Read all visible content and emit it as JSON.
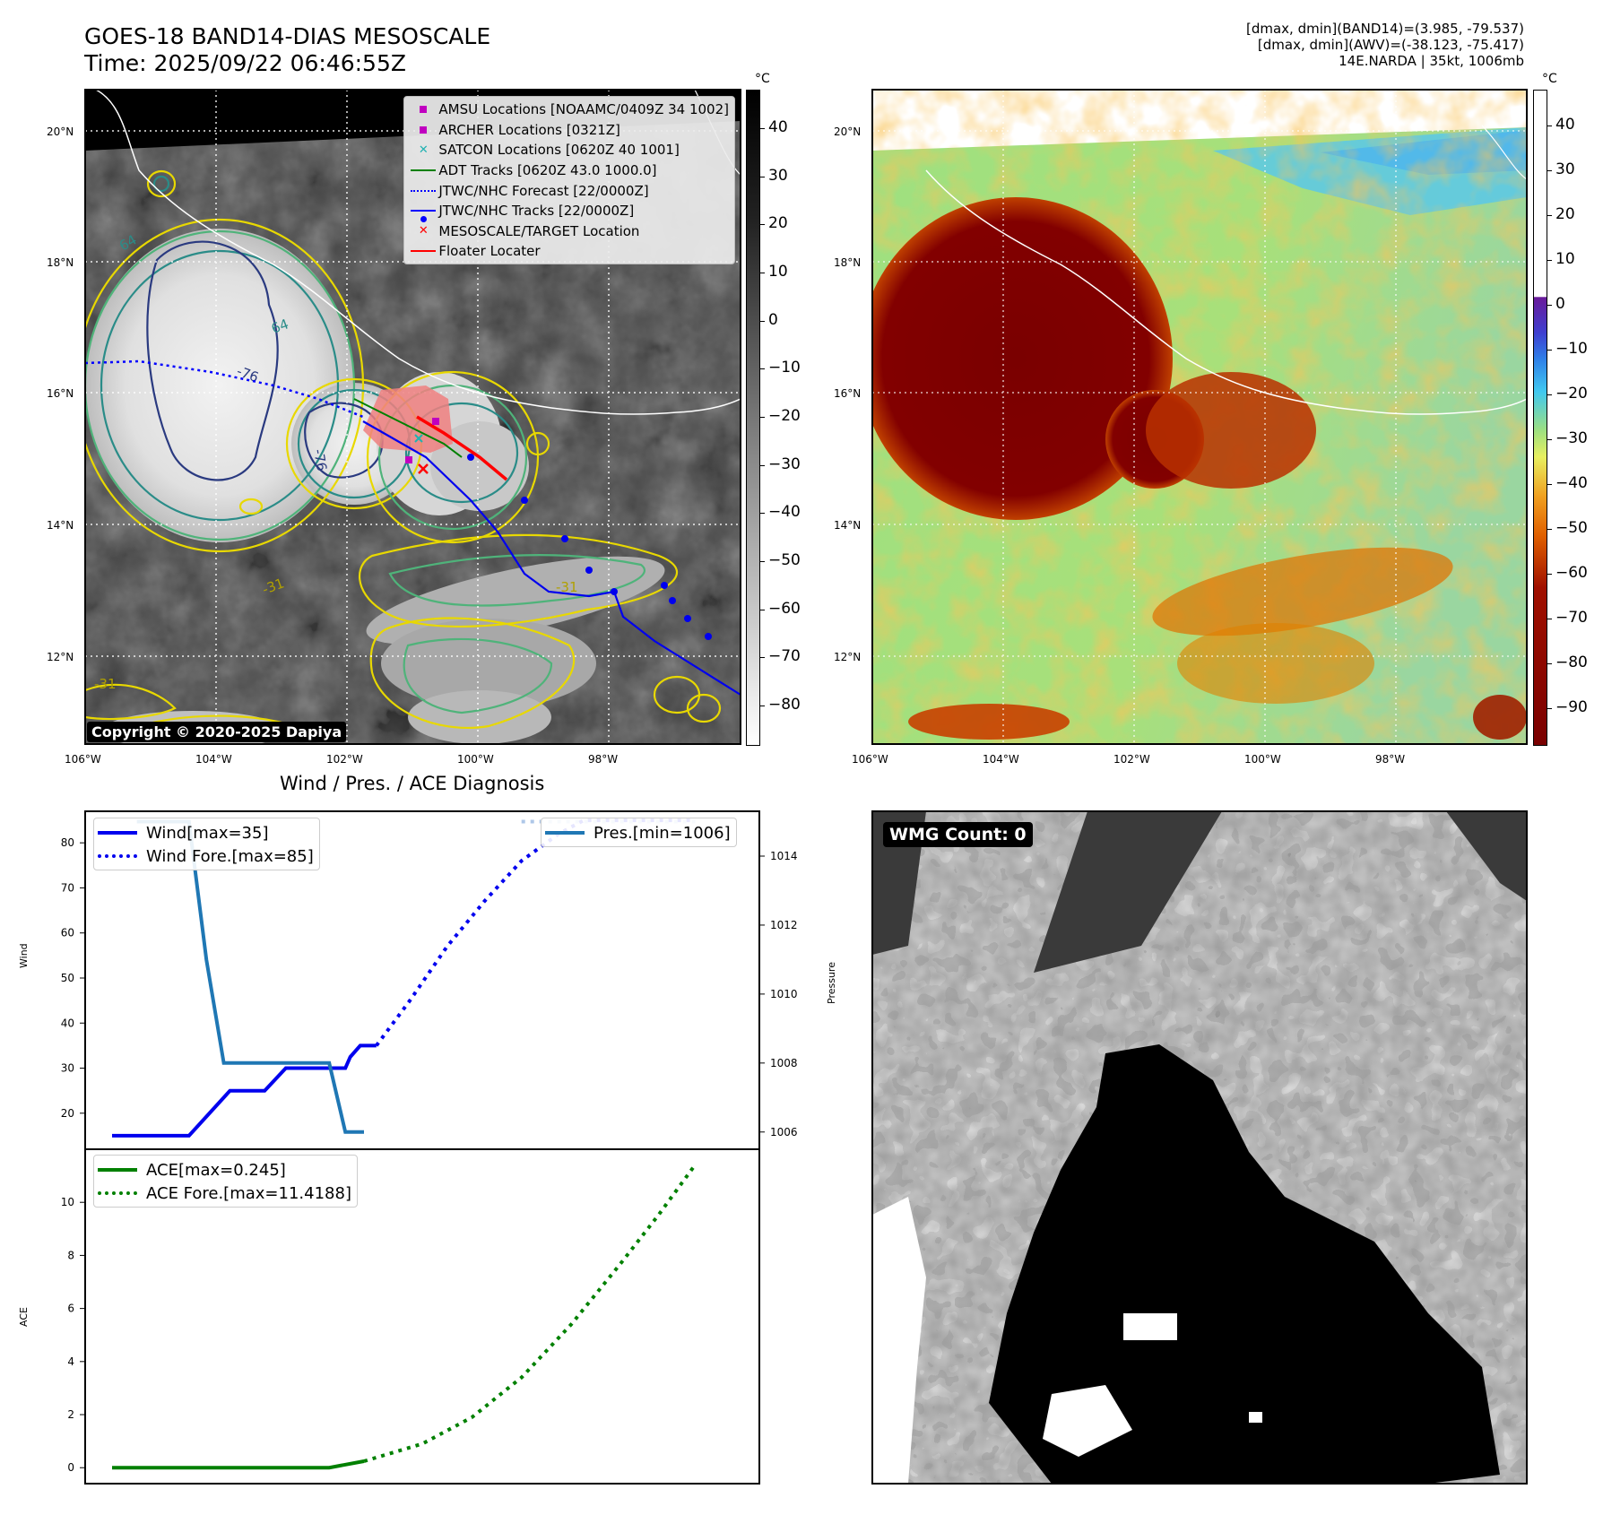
{
  "header": {
    "title": "GOES-18 BAND14-DIAS MESOSCALE",
    "time": "Time: 2025/09/22 06:46:55Z",
    "stats_line1": "[dmax, dmin](BAND14)=(3.985, -79.537)",
    "stats_line2": "[dmax, dmin](AWV)=(-38.123, -75.417)",
    "stats_line3": "14E.NARDA | 35kt, 1006mb"
  },
  "map_panel": {
    "lat_labels": [
      "20°N",
      "18°N",
      "16°N",
      "14°N",
      "12°N"
    ],
    "lon_labels": [
      "106°W",
      "104°W",
      "102°W",
      "100°W",
      "98°W"
    ],
    "copyright": "Copyright © 2020-2025 Dapiya",
    "contour_labels": [
      "64",
      "-76",
      "-76",
      "64",
      "-31",
      "-31",
      "-31"
    ],
    "legend": [
      {
        "label": "AMSU Locations [NOAAMC/0409Z 34 1002]",
        "symbol": "square",
        "color": "#c000c0"
      },
      {
        "label": "ARCHER Locations [0321Z]",
        "symbol": "square",
        "color": "#c000c0"
      },
      {
        "label": "SATCON Locations [0620Z 40 1001]",
        "symbol": "x",
        "color": "#20b2b2"
      },
      {
        "label": "ADT Tracks [0620Z 43.0 1000.0]",
        "symbol": "line",
        "color": "#008000"
      },
      {
        "label": "JTWC/NHC Forecast [22/0000Z]",
        "symbol": "dotted",
        "color": "#0000ff"
      },
      {
        "label": "JTWC/NHC Tracks [22/0000Z]",
        "symbol": "line-dot",
        "color": "#0000ff"
      },
      {
        "label": "MESOSCALE/TARGET Location",
        "symbol": "x",
        "color": "#ff0000"
      },
      {
        "label": "Floater Locater",
        "symbol": "line",
        "color": "#ff0000"
      }
    ],
    "colorbar_unit": "°C",
    "colorbar_ticks": [
      "40",
      "30",
      "20",
      "10",
      "0",
      "−10",
      "−20",
      "−30",
      "−40",
      "−50",
      "−60",
      "−70",
      "−80"
    ]
  },
  "awv_panel": {
    "lat_labels": [
      "20°N",
      "18°N",
      "16°N",
      "14°N",
      "12°N"
    ],
    "lon_labels": [
      "106°W",
      "104°W",
      "102°W",
      "100°W",
      "98°W"
    ],
    "colorbar_unit": "°C",
    "colorbar_ticks": [
      "40",
      "30",
      "20",
      "10",
      "0",
      "−10",
      "−20",
      "−30",
      "−40",
      "−50",
      "−60",
      "−70",
      "−80",
      "−90"
    ]
  },
  "wmg_panel": {
    "badge": "WMG Count: 0"
  },
  "chart_data": [
    {
      "type": "line",
      "title": "Wind / Pres. / ACE Diagnosis",
      "xlabel": "",
      "ylabel": "Wind",
      "ylabel_right": "Pressure",
      "ylim": [
        12,
        87
      ],
      "ylim_right": [
        1005.5,
        1015.3
      ],
      "y_ticks": [
        "80",
        "70",
        "60",
        "50",
        "40",
        "30",
        "20"
      ],
      "y_ticks_right": [
        "1014",
        "1012",
        "1010",
        "1008",
        "1006"
      ],
      "x": [
        0,
        1,
        2,
        3,
        4,
        5,
        6,
        7,
        8,
        9,
        10,
        11,
        12,
        13,
        14,
        15,
        16,
        17,
        18,
        19,
        20,
        21,
        22,
        23,
        24,
        25,
        26,
        27,
        28,
        29,
        30,
        31,
        32,
        33,
        34,
        35,
        36,
        37,
        38,
        39,
        40,
        41,
        42,
        43,
        44,
        45,
        46,
        47,
        48,
        49,
        50
      ],
      "series": [
        {
          "name": "Wind[max=35]",
          "style": "solid",
          "color": "#0000ee",
          "axis": "left",
          "points": [
            [
              0,
              15
            ],
            [
              6.2,
              15
            ],
            [
              9.5,
              25
            ],
            [
              12.3,
              25
            ],
            [
              14,
              30
            ],
            [
              18.8,
              30
            ],
            [
              19.2,
              32.5
            ],
            [
              20,
              35
            ],
            [
              21.3,
              35
            ]
          ]
        },
        {
          "name": "Wind Fore.[max=85]",
          "style": "dotted",
          "color": "#0000ee",
          "axis": "left",
          "points": [
            [
              21.3,
              35
            ],
            [
              24,
              45
            ],
            [
              27,
              57
            ],
            [
              30,
              67
            ],
            [
              33,
              76
            ],
            [
              36,
              82
            ],
            [
              38,
              85
            ],
            [
              47,
              85
            ]
          ]
        },
        {
          "name": "Pres.[min=1006]",
          "style": "solid",
          "color": "#1f77b4",
          "axis": "right",
          "points": [
            [
              2,
              1015
            ],
            [
              6.2,
              1015
            ],
            [
              7.6,
              1011
            ],
            [
              9,
              1008
            ],
            [
              17.5,
              1008
            ],
            [
              18.8,
              1006
            ],
            [
              20.3,
              1006
            ]
          ]
        },
        {
          "name": "",
          "style": "dotted",
          "color": "#aec7e8",
          "axis": "right",
          "points": [
            [
              33,
              1015
            ],
            [
              47,
              1015
            ]
          ]
        }
      ]
    },
    {
      "type": "line",
      "title": "",
      "xlabel": "",
      "ylabel": "ACE",
      "ylim": [
        -0.6,
        12
      ],
      "y_ticks": [
        "10",
        "8",
        "6",
        "4",
        "2",
        "0"
      ],
      "series": [
        {
          "name": "ACE[max=0.245]",
          "style": "solid",
          "color": "#008000",
          "points": [
            [
              0,
              0
            ],
            [
              17.5,
              0
            ],
            [
              20.3,
              0.245
            ]
          ]
        },
        {
          "name": "ACE Fore.[max=11.4188]",
          "style": "dotted",
          "color": "#008000",
          "points": [
            [
              20.3,
              0.245
            ],
            [
              25,
              0.9
            ],
            [
              29,
              1.9
            ],
            [
              33,
              3.4
            ],
            [
              37,
              5.4
            ],
            [
              41,
              7.7
            ],
            [
              44,
              9.5
            ],
            [
              47,
              11.4188
            ]
          ]
        }
      ]
    }
  ]
}
